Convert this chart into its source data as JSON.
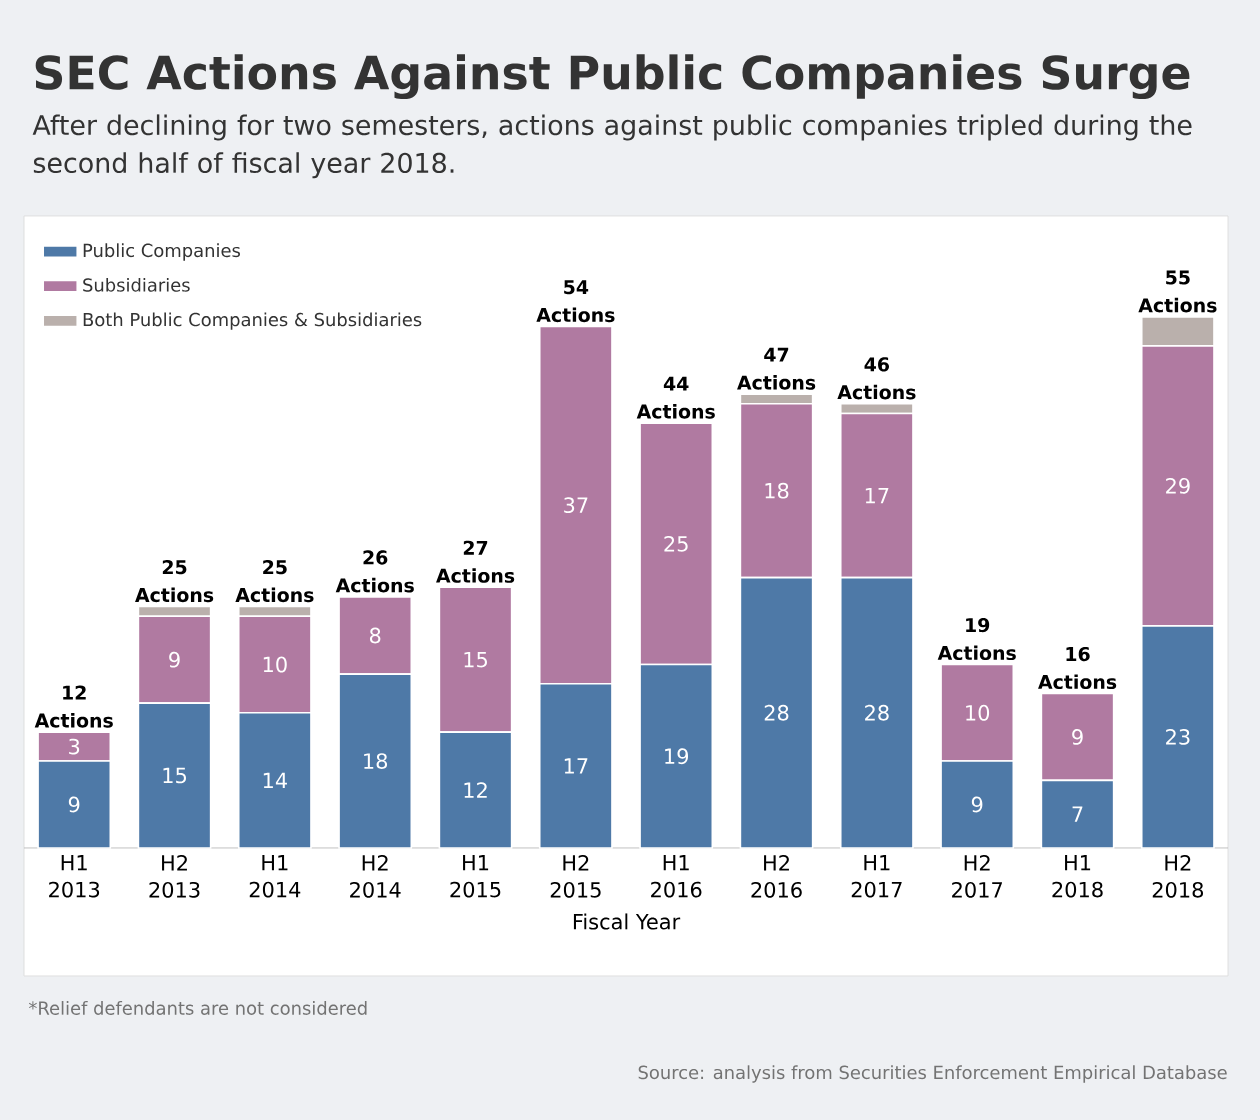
{
  "chart_data": {
    "type": "bar",
    "stacked": true,
    "title": "SEC Actions Against Public Companies Surge",
    "subtitle": "After declining for two semesters, actions against public companies tripled during the second half of fiscal year 2018.",
    "xlabel": "Fiscal Year",
    "categories": [
      "H1 2013",
      "H2 2013",
      "H1 2014",
      "H2 2014",
      "H1 2015",
      "H2 2015",
      "H1 2016",
      "H2 2016",
      "H1 2017",
      "H2 2017",
      "H1 2018",
      "H2 2018"
    ],
    "series": [
      {
        "name": "Public Companies",
        "color": "#4e79a7",
        "values": [
          9,
          15,
          14,
          18,
          12,
          17,
          19,
          28,
          28,
          9,
          7,
          23
        ],
        "value_labels": [
          "9",
          "15",
          "14",
          "18",
          "12",
          "17",
          "19",
          "28",
          "28",
          "9",
          "7",
          "23"
        ]
      },
      {
        "name": "Subsidiaries",
        "color": "#b07aa1",
        "values": [
          3,
          9,
          10,
          8,
          15,
          37,
          25,
          18,
          17,
          10,
          9,
          29
        ],
        "value_labels": [
          "3",
          "9",
          "10",
          "8",
          "15",
          "37",
          "25",
          "18",
          "17",
          "10",
          "9",
          "29"
        ]
      },
      {
        "name": "Both Public Companies & Subsidiaries",
        "color": "#bab0ac",
        "values": [
          0,
          1,
          1,
          0,
          0,
          0,
          0,
          1,
          1,
          0,
          0,
          3
        ]
      }
    ],
    "totals": [
      "12 Actions",
      "25 Actions",
      "25 Actions",
      "26 Actions",
      "27 Actions",
      "54 Actions",
      "44 Actions",
      "47 Actions",
      "46 Actions",
      "19 Actions",
      "16 Actions",
      "55 Actions"
    ],
    "legend": "top left",
    "annotations": [
      "*Relief defendants are not considered",
      "Source: analysis from Securities Enforcement Empirical Database"
    ]
  }
}
